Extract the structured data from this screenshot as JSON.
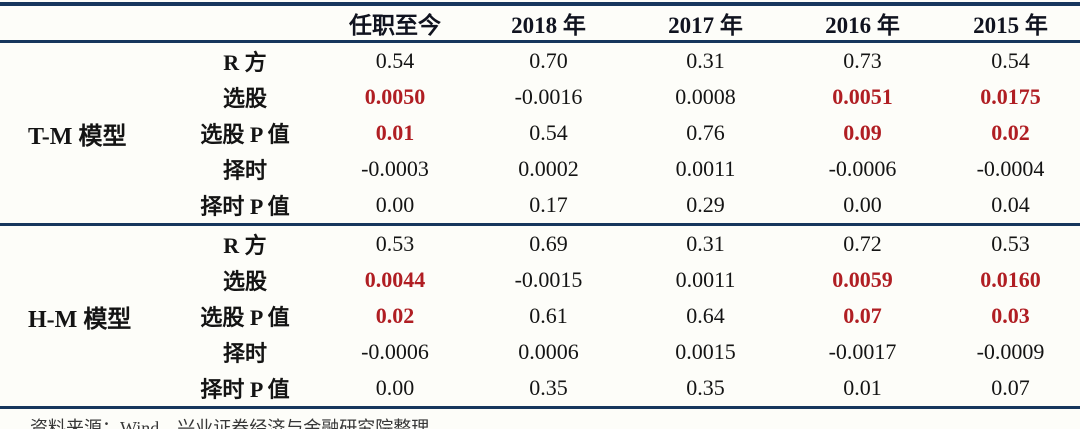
{
  "accent": {
    "rule_color": "#17365d",
    "highlight_color": "#b01e23"
  },
  "table": {
    "header": {
      "model_col": "",
      "metric_col": "",
      "years": [
        "任职至今",
        "2018 年",
        "2017 年",
        "2016 年",
        "2015 年"
      ]
    },
    "sections": [
      {
        "model": "T-M 模型",
        "rows": [
          {
            "label": "R 方",
            "values": [
              "0.54",
              "0.70",
              "0.31",
              "0.73",
              "0.54"
            ],
            "highlight": [
              false,
              false,
              false,
              false,
              false
            ]
          },
          {
            "label": "选股",
            "values": [
              "0.0050",
              "-0.0016",
              "0.0008",
              "0.0051",
              "0.0175"
            ],
            "highlight": [
              true,
              false,
              false,
              true,
              true
            ]
          },
          {
            "label": "选股 P 值",
            "values": [
              "0.01",
              "0.54",
              "0.76",
              "0.09",
              "0.02"
            ],
            "highlight": [
              true,
              false,
              false,
              true,
              true
            ]
          },
          {
            "label": "择时",
            "values": [
              "-0.0003",
              "0.0002",
              "0.0011",
              "-0.0006",
              "-0.0004"
            ],
            "highlight": [
              false,
              false,
              false,
              false,
              false
            ]
          },
          {
            "label": "择时 P 值",
            "values": [
              "0.00",
              "0.17",
              "0.29",
              "0.00",
              "0.04"
            ],
            "highlight": [
              false,
              false,
              false,
              false,
              false
            ]
          }
        ]
      },
      {
        "model": "H-M 模型",
        "rows": [
          {
            "label": "R 方",
            "values": [
              "0.53",
              "0.69",
              "0.31",
              "0.72",
              "0.53"
            ],
            "highlight": [
              false,
              false,
              false,
              false,
              false
            ]
          },
          {
            "label": "选股",
            "values": [
              "0.0044",
              "-0.0015",
              "0.0011",
              "0.0059",
              "0.0160"
            ],
            "highlight": [
              true,
              false,
              false,
              true,
              true
            ]
          },
          {
            "label": "选股 P 值",
            "values": [
              "0.02",
              "0.61",
              "0.64",
              "0.07",
              "0.03"
            ],
            "highlight": [
              true,
              false,
              false,
              true,
              true
            ]
          },
          {
            "label": "择时",
            "values": [
              "-0.0006",
              "0.0006",
              "0.0015",
              "-0.0017",
              "-0.0009"
            ],
            "highlight": [
              false,
              false,
              false,
              false,
              false
            ]
          },
          {
            "label": "择时 P 值",
            "values": [
              "0.00",
              "0.35",
              "0.35",
              "0.01",
              "0.07"
            ],
            "highlight": [
              false,
              false,
              false,
              false,
              false
            ]
          }
        ]
      }
    ]
  },
  "footer": {
    "source_note": "资料来源：Wind，兴业证券经济与金融研究院整理"
  }
}
